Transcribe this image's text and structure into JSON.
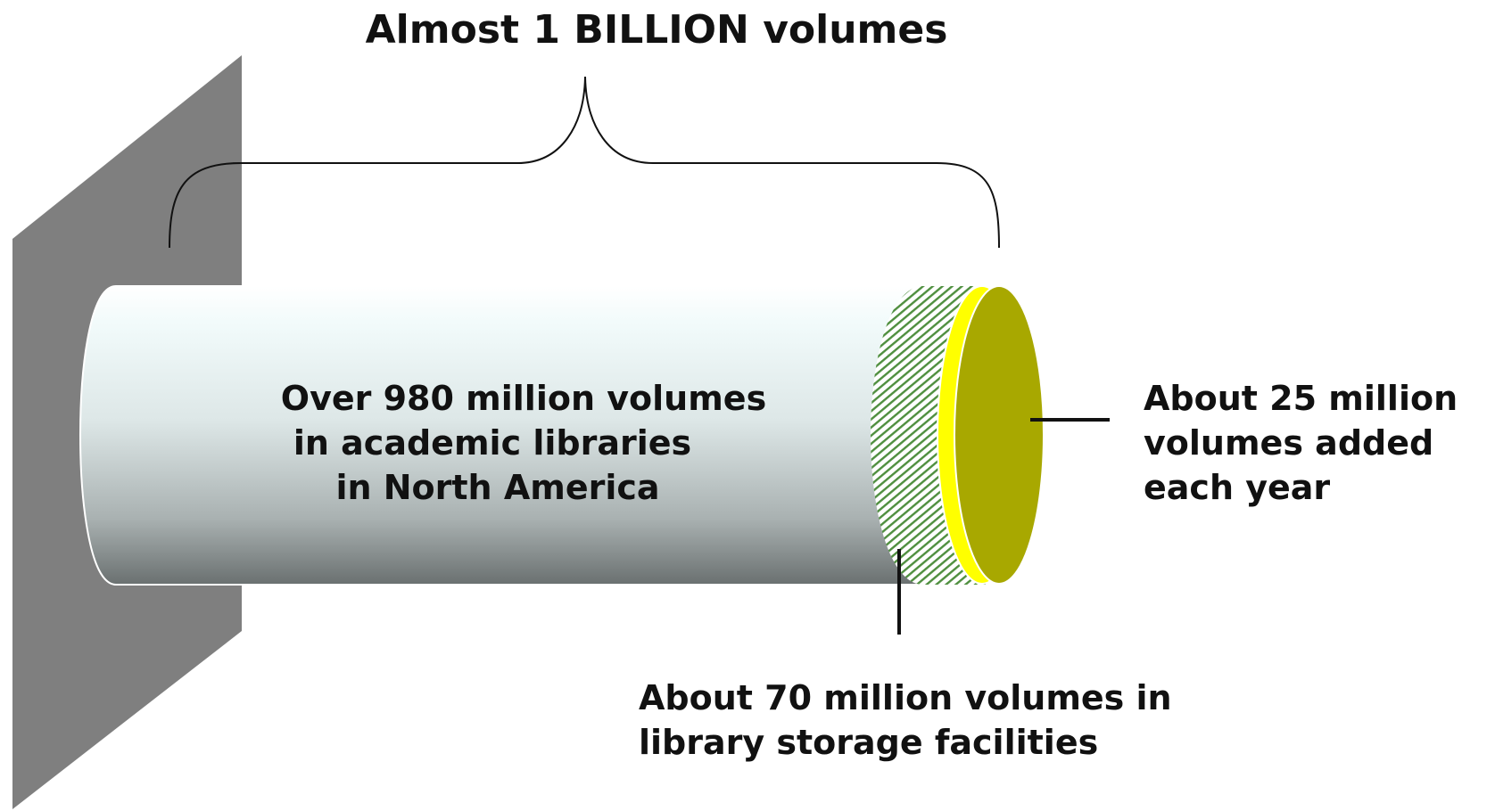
{
  "title": "Almost 1 BILLION volumes",
  "cylinder_label": [
    "Over 980 million volumes",
    "in academic libraries",
    "in North America"
  ],
  "added_label": [
    "About 25 million",
    "volumes added",
    "each year"
  ],
  "storage_label": [
    "About 70 million volumes in",
    "library storage facilities"
  ],
  "colors": {
    "wall": "#7f7f7f",
    "cylinder_light": "#f2fbfb",
    "cylinder_dark": "#6a7070",
    "hatch": "#4f8f3f",
    "rim": "#ffff00",
    "cap": "#a8a800",
    "text": "#111111"
  }
}
